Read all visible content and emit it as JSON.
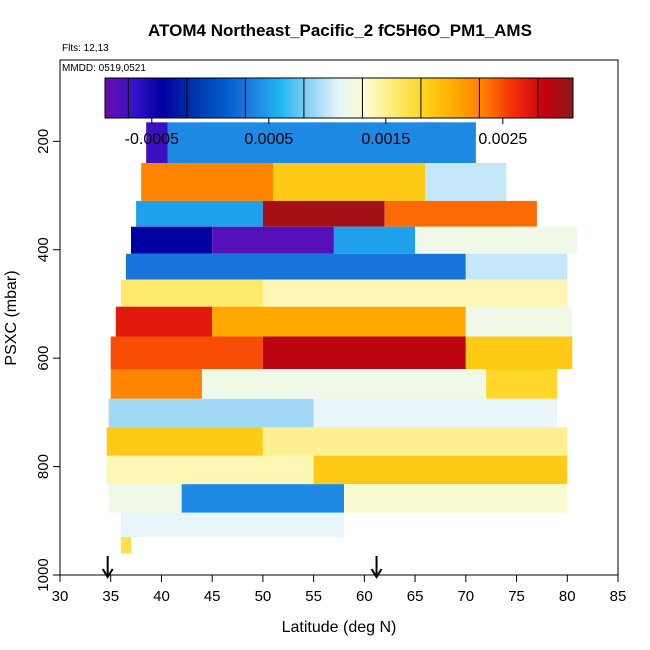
{
  "chart_data": {
    "type": "heatmap",
    "title": "ATOM4 Northeast_Pacific_2 fC5H6O_PM1_AMS",
    "flights_label": "Flts: 12,13",
    "dates_label": "MMDD: 0519,0521",
    "xlabel": "Latitude (deg N)",
    "ylabel": "PSXC (mbar)",
    "xlim": [
      30,
      85
    ],
    "ylim": [
      1000,
      50
    ],
    "x_ticks": [
      30,
      35,
      40,
      45,
      50,
      55,
      60,
      65,
      70,
      75,
      80,
      85
    ],
    "y_ticks": [
      200,
      400,
      600,
      800,
      1000
    ],
    "colorbar": {
      "min": -0.0009,
      "max": 0.0031,
      "ticks": [
        -0.0005,
        0.0005,
        0.0015,
        0.0025
      ],
      "tick_labels": [
        "-0.0005",
        "0.0005",
        "0.0015",
        "0.0025"
      ],
      "colors": [
        "#6a0dad",
        "#3311c8",
        "#0000a0",
        "#0033aa",
        "#0057c8",
        "#1e7de0",
        "#1fb8f0",
        "#8fd0f5",
        "#e8f6fb",
        "#fdfbc8",
        "#ffe96a",
        "#ffd21a",
        "#ffa800",
        "#ff7b00",
        "#f22c0a",
        "#c8000f",
        "#8b1a1a"
      ]
    },
    "markers_lat": [
      34.7,
      61.2
    ],
    "rows": [
      {
        "p": 190,
        "segs": [
          [
            38.5,
            40.6,
            -0.0007
          ],
          [
            40.6,
            71.0,
            0.0004
          ]
        ]
      },
      {
        "p": 290,
        "segs": [
          [
            38.0,
            51.0,
            0.0023
          ],
          [
            51.0,
            66.0,
            0.0019
          ],
          [
            66.0,
            74.0,
            0.001
          ]
        ]
      },
      {
        "p": 330,
        "segs": [
          [
            37.5,
            50.0,
            0.0005
          ],
          [
            50.0,
            62.0,
            0.003
          ],
          [
            62.0,
            77.0,
            0.0024
          ]
        ]
      },
      {
        "p": 385,
        "segs": [
          [
            37.0,
            45.0,
            -0.0004
          ],
          [
            45.0,
            57.0,
            -0.0008
          ],
          [
            57.0,
            65.0,
            0.0005
          ],
          [
            65.0,
            81.0,
            0.0012
          ]
        ]
      },
      {
        "p": 430,
        "segs": [
          [
            36.5,
            70.0,
            0.0003
          ],
          [
            70.0,
            80.0,
            0.001
          ]
        ]
      },
      {
        "p": 480,
        "segs": [
          [
            36.0,
            50.0,
            0.0016
          ],
          [
            50.0,
            80.0,
            0.0014
          ]
        ]
      },
      {
        "p": 530,
        "segs": [
          [
            35.5,
            45.0,
            0.0027
          ],
          [
            45.0,
            70.0,
            0.0021
          ],
          [
            70.0,
            80.5,
            0.0012
          ]
        ]
      },
      {
        "p": 590,
        "segs": [
          [
            35.0,
            50.0,
            0.0025
          ],
          [
            50.0,
            70.0,
            0.0029
          ],
          [
            70.0,
            80.5,
            0.0019
          ]
        ]
      },
      {
        "p": 650,
        "segs": [
          [
            35.0,
            44.0,
            0.0023
          ],
          [
            44.0,
            72.0,
            0.0012
          ],
          [
            72.0,
            79.0,
            0.0018
          ]
        ]
      },
      {
        "p": 700,
        "segs": [
          [
            34.8,
            55.0,
            0.0009
          ],
          [
            55.0,
            79.0,
            0.0011
          ]
        ]
      },
      {
        "p": 755,
        "segs": [
          [
            34.6,
            50.0,
            0.0019
          ],
          [
            50.0,
            80.0,
            0.0015
          ]
        ]
      },
      {
        "p": 805,
        "segs": [
          [
            34.6,
            55.0,
            0.0014
          ],
          [
            55.0,
            80.0,
            0.0019
          ]
        ]
      },
      {
        "p": 860,
        "segs": [
          [
            34.8,
            42.0,
            0.0012
          ],
          [
            42.0,
            58.0,
            0.0004
          ],
          [
            58.0,
            80.0,
            0.0013
          ]
        ]
      },
      {
        "p": 910,
        "segs": [
          [
            36.0,
            58.0,
            0.0011
          ]
        ]
      },
      {
        "p": 950,
        "segs": [
          [
            36.0,
            37.0,
            0.0017
          ]
        ]
      }
    ]
  }
}
